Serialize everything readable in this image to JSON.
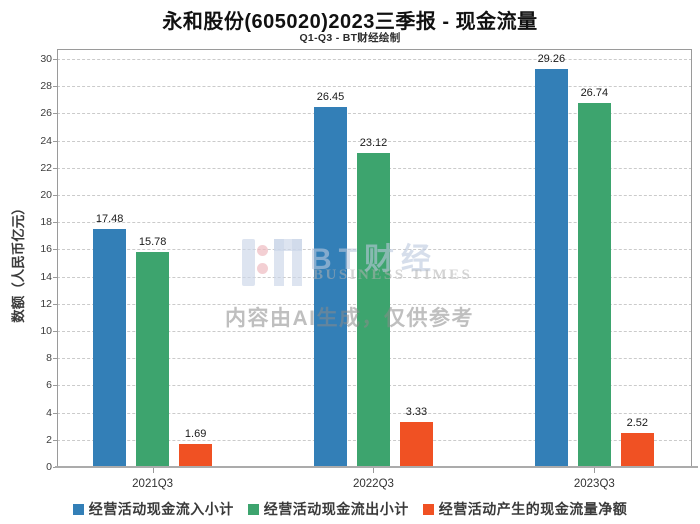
{
  "chart_data": {
    "type": "bar",
    "title": "永和股份(605020)2023三季报 - 现金流量",
    "subtitle": "Q1-Q3 - BT财经绘制",
    "categories": [
      "2021Q3",
      "2022Q3",
      "2023Q3"
    ],
    "series": [
      {
        "name": "经营活动现金流入小计",
        "color": "#337fb7",
        "values": [
          17.48,
          26.45,
          29.26
        ]
      },
      {
        "name": "经营活动现金流出小计",
        "color": "#3da46e",
        "values": [
          15.78,
          23.12,
          26.74
        ]
      },
      {
        "name": "经营活动产生的现金流量净额",
        "color": "#f05123",
        "values": [
          1.69,
          3.33,
          2.52
        ]
      }
    ],
    "xlabel": "",
    "ylabel": "数额（人民币亿元）",
    "ylim": [
      0,
      30.74
    ],
    "ytick_step": 2,
    "ytick_max": 30,
    "grid": "horizontal-dashed",
    "legend_position": "bottom",
    "bar_value_labels": true
  },
  "watermark": {
    "brand_cn": "BT财经",
    "brand_en": "BUSINESS TIMES",
    "ai_notice": "内容由AI生成，仅供参考"
  }
}
